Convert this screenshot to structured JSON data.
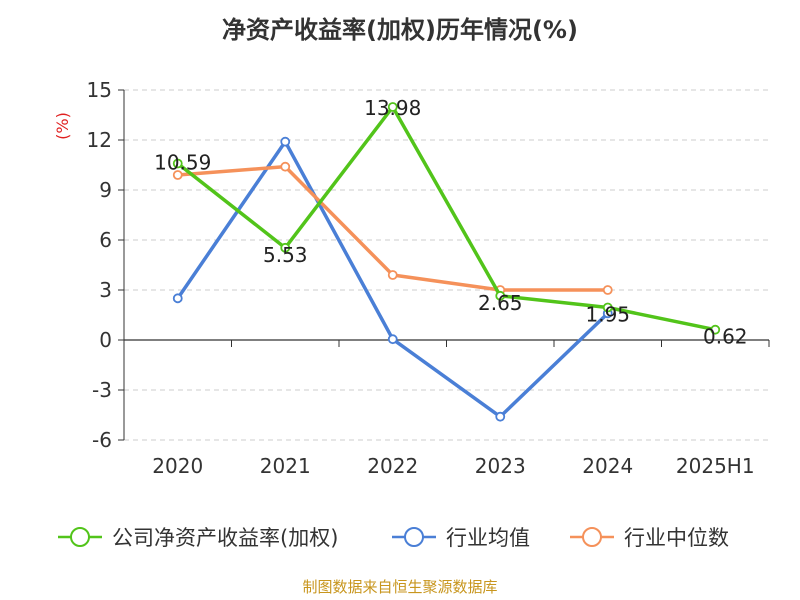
{
  "chart_data": {
    "type": "line",
    "title": "净资产收益率(加权)历年情况(%)",
    "ylabel": "(%)",
    "categories": [
      "2020",
      "2021",
      "2022",
      "2023",
      "2024",
      "2025H1"
    ],
    "yticks": [
      "15",
      "12",
      "9",
      "6",
      "3",
      "0",
      "-3",
      "-6"
    ],
    "ylim": [
      -6,
      15
    ],
    "grid": true,
    "legend_position": "bottom",
    "series": [
      {
        "name": "公司净资产收益率(加权)",
        "color": "#52c41a",
        "values": [
          10.59,
          5.53,
          13.98,
          2.65,
          1.95,
          0.62
        ],
        "labels": [
          "10.59",
          "5.53",
          "13.98",
          "2.65",
          "1.95",
          "0.62"
        ]
      },
      {
        "name": "行业均值",
        "color": "#4a7fd6",
        "values": [
          2.5,
          11.9,
          0.05,
          -4.6,
          1.6,
          null
        ],
        "labels": []
      },
      {
        "name": "行业中位数",
        "color": "#f5915a",
        "values": [
          9.9,
          10.4,
          3.9,
          3.0,
          3.0,
          null
        ],
        "labels": []
      }
    ],
    "source": "制图数据来自恒生聚源数据库"
  }
}
